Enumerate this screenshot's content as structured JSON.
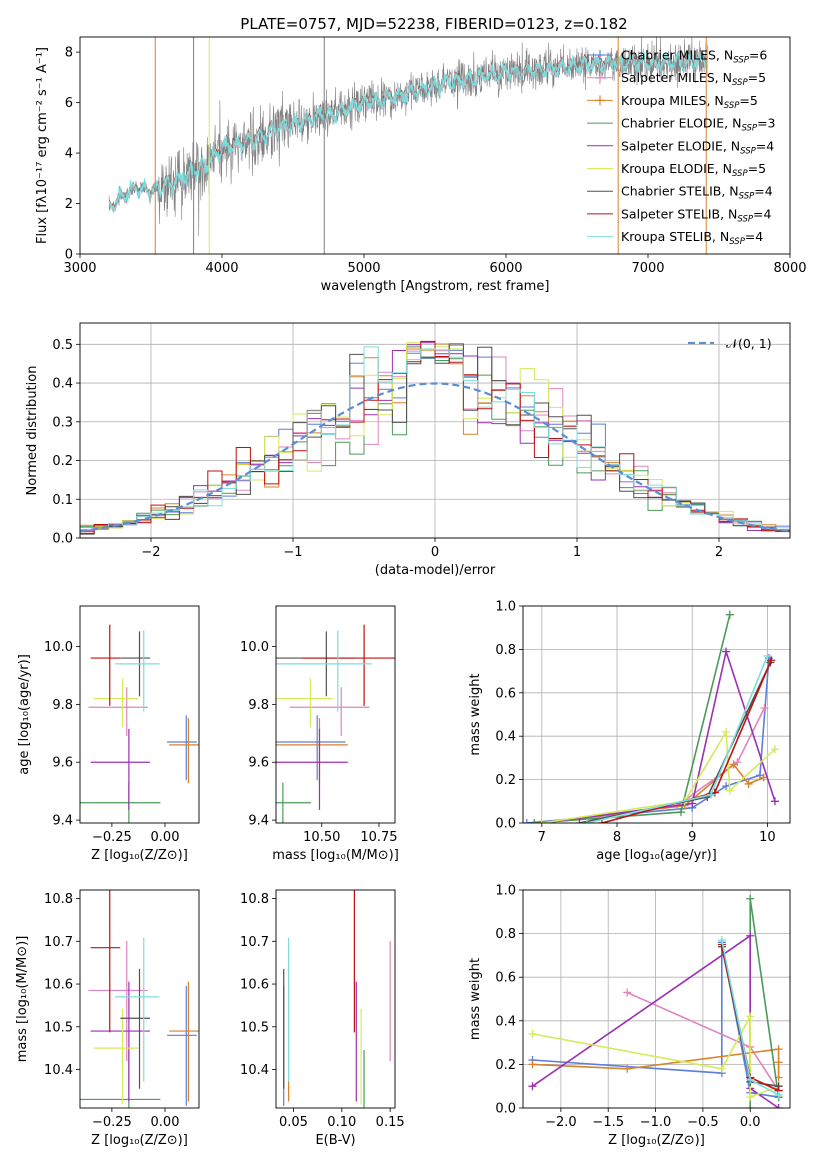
{
  "figure": {
    "title": "PLATE=0757, MJD=52238, FIBERID=0123, z=0.182"
  },
  "chart_data": [
    {
      "id": "spectrum",
      "type": "line",
      "xlabel": "wavelength [Angstrom, rest frame]",
      "ylabel": "Flux [fλ10⁻¹⁷ erg cm⁻² s⁻¹ A⁻¹]",
      "xlim": [
        3000,
        8000
      ],
      "ylim": [
        0,
        8.6
      ],
      "xticks": [
        3000,
        4000,
        5000,
        6000,
        7000,
        8000
      ],
      "yticks": [
        0,
        2,
        4,
        6,
        8
      ],
      "observed_color": "#808080",
      "model_color": "#7fdcdc",
      "continuum": [
        [
          3200,
          1.8
        ],
        [
          3300,
          2.3
        ],
        [
          3400,
          2.6
        ],
        [
          3500,
          2.5
        ],
        [
          3600,
          2.7
        ],
        [
          3700,
          3.0
        ],
        [
          3800,
          3.3
        ],
        [
          3900,
          3.6
        ],
        [
          4000,
          4.2
        ],
        [
          4100,
          4.3
        ],
        [
          4200,
          4.5
        ],
        [
          4300,
          4.7
        ],
        [
          4400,
          5.0
        ],
        [
          4500,
          5.2
        ],
        [
          4600,
          5.3
        ],
        [
          4700,
          5.5
        ],
        [
          4800,
          5.6
        ],
        [
          4900,
          5.8
        ],
        [
          5000,
          6.0
        ],
        [
          5200,
          6.2
        ],
        [
          5400,
          6.5
        ],
        [
          5600,
          6.8
        ],
        [
          5800,
          7.0
        ],
        [
          6000,
          7.2
        ],
        [
          6200,
          7.3
        ],
        [
          6400,
          7.4
        ],
        [
          6600,
          7.5
        ],
        [
          6800,
          7.6
        ],
        [
          7000,
          7.6
        ],
        [
          7200,
          7.6
        ],
        [
          7420,
          7.7
        ]
      ],
      "legend_position": "upper-right",
      "legend": [
        {
          "label": "Chabrier MILES, N",
          "sub": "SSP",
          "suffix": "=6",
          "color": "#5b7fdc",
          "marker": "plus"
        },
        {
          "label": "Salpeter MILES, N",
          "sub": "SSP",
          "suffix": "=5",
          "color": "#e085c0",
          "marker": "plus"
        },
        {
          "label": "Kroupa MILES, N",
          "sub": "SSP",
          "suffix": "=5",
          "color": "#d9822b",
          "marker": "plus"
        },
        {
          "label": "Chabrier ELODIE, N",
          "sub": "SSP",
          "suffix": "=3",
          "color": "#4c9a5a",
          "marker": "line"
        },
        {
          "label": "Salpeter ELODIE, N",
          "sub": "SSP",
          "suffix": "=4",
          "color": "#9b30b5",
          "marker": "line"
        },
        {
          "label": "Kroupa ELODIE, N",
          "sub": "SSP",
          "suffix": "=5",
          "color": "#d6ea5a",
          "marker": "line"
        },
        {
          "label": "Chabrier STELIB, N",
          "sub": "SSP",
          "suffix": "=4",
          "color": "#505050",
          "marker": "line"
        },
        {
          "label": "Salpeter STELIB, N",
          "sub": "SSP",
          "suffix": "=4",
          "color": "#c01010",
          "marker": "line"
        },
        {
          "label": "Kroupa STELIB, N",
          "sub": "SSP",
          "suffix": "=4",
          "color": "#7fdcdc",
          "marker": "line"
        }
      ]
    },
    {
      "id": "residuals",
      "type": "line",
      "xlabel": "(data-model)/error",
      "ylabel": "Normed distribution",
      "xlim": [
        -2.5,
        2.5
      ],
      "ylim": [
        0,
        0.555
      ],
      "xticks": [
        -2,
        -1,
        0,
        1,
        2
      ],
      "yticks": [
        0.0,
        0.1,
        0.2,
        0.3,
        0.4,
        0.5
      ],
      "bin_width": 0.1,
      "normal_label": "𝒩(0, 1)",
      "normal_color": "#5b8ed6"
    },
    {
      "id": "z-age",
      "type": "scatter",
      "xlabel": "Z [log₁₀(Z/Z⊙)]",
      "ylabel": "age  [log₁₀(age/yr)]",
      "xlim": [
        -0.4,
        0.16
      ],
      "ylim": [
        9.39,
        10.14
      ],
      "xticks": [
        -0.25,
        0.0
      ],
      "yticks": [
        9.4,
        9.6,
        9.8,
        10.0
      ]
    },
    {
      "id": "mass-age",
      "type": "scatter",
      "xlabel": "mass [log₁₀(M/M⊙)]",
      "ylabel": "",
      "xlim": [
        10.3,
        10.82
      ],
      "ylim": [
        9.39,
        10.14
      ],
      "xticks": [
        10.5,
        10.75
      ],
      "yticks": [
        9.4,
        9.6,
        9.8,
        10.0
      ]
    },
    {
      "id": "age-weight",
      "type": "line",
      "xlabel": "age  [log₁₀(age/yr)]",
      "ylabel": "mass weight",
      "xlim": [
        6.75,
        10.3
      ],
      "ylim": [
        0,
        1.0
      ],
      "xticks": [
        7,
        8,
        9,
        10
      ],
      "yticks": [
        0.0,
        0.2,
        0.4,
        0.6,
        0.8,
        1.0
      ]
    },
    {
      "id": "z-mass",
      "type": "scatter",
      "xlabel": "Z [log₁₀(Z/Z⊙)]",
      "ylabel": "mass [log₁₀(M/M⊙)]",
      "xlim": [
        -0.4,
        0.16
      ],
      "ylim": [
        10.31,
        10.82
      ],
      "xticks": [
        -0.25,
        0.0
      ],
      "yticks": [
        10.4,
        10.5,
        10.6,
        10.7,
        10.8
      ]
    },
    {
      "id": "ebv-mass",
      "type": "scatter",
      "xlabel": "E(B-V)",
      "ylabel": "",
      "xlim": [
        0.032,
        0.155
      ],
      "ylim": [
        10.31,
        10.82
      ],
      "xticks": [
        0.05,
        0.1,
        0.15
      ],
      "yticks": [
        10.4,
        10.5,
        10.6,
        10.7,
        10.8
      ]
    },
    {
      "id": "z-weight",
      "type": "line",
      "xlabel": "Z [log₁₀(Z/Z⊙)]",
      "ylabel": "mass weight",
      "xlim": [
        -2.4,
        0.42
      ],
      "ylim": [
        0,
        1.0
      ],
      "xticks": [
        -2.0,
        -1.5,
        -1.0,
        -0.5,
        0.0
      ],
      "yticks": [
        0.0,
        0.2,
        0.4,
        0.6,
        0.8,
        1.0
      ]
    }
  ],
  "models": [
    {
      "name": "Chabrier MILES",
      "color": "#5b7fdc",
      "Z": [
        0.1,
        0.02
      ],
      "age": [
        9.67,
        0.04
      ],
      "mass": [
        10.48,
        0.05
      ],
      "ebv": 0.04,
      "weights": [
        [
          6.8,
          0.0
        ],
        [
          9.0,
          0.07
        ],
        [
          9.45,
          0.17
        ],
        [
          9.9,
          0.22
        ],
        [
          10.02,
          0.76
        ]
      ],
      "zw": [
        [
          -2.3,
          0.22
        ],
        [
          -0.3,
          0.16
        ],
        [
          -0.3,
          0.76
        ],
        [
          0.0,
          0.07
        ],
        [
          0.3,
          0.05
        ]
      ]
    },
    {
      "name": "Salpeter MILES",
      "color": "#e085c0",
      "Z": [
        -0.18,
        0.04
      ],
      "age": [
        9.79,
        0.03
      ],
      "mass": [
        10.585,
        0.05
      ],
      "ebv": 0.15,
      "weights": [
        [
          8.8,
          0.08
        ],
        [
          9.6,
          0.28
        ],
        [
          9.96,
          0.53
        ]
      ],
      "zw": [
        [
          -1.3,
          0.53
        ],
        [
          0.0,
          0.28
        ],
        [
          0.3,
          0.08
        ]
      ]
    },
    {
      "name": "Kroupa MILES",
      "color": "#d9822b",
      "Z": [
        0.11,
        0.02
      ],
      "age": [
        9.66,
        0.04
      ],
      "mass": [
        10.49,
        0.05
      ],
      "ebv": 0.045,
      "weights": [
        [
          7.0,
          0.0
        ],
        [
          8.9,
          0.08
        ],
        [
          9.55,
          0.27
        ],
        [
          9.75,
          0.18
        ],
        [
          9.95,
          0.21
        ]
      ],
      "zw": [
        [
          -2.3,
          0.2
        ],
        [
          -1.3,
          0.18
        ],
        [
          0.3,
          0.27
        ],
        [
          0.3,
          0.14
        ],
        [
          0.3,
          0.21
        ]
      ]
    },
    {
      "name": "Chabrier ELODIE",
      "color": "#4c9a5a",
      "Z": [
        -0.17,
        0.06
      ],
      "age": [
        9.46,
        0.03
      ],
      "mass": [
        10.33,
        0.05
      ],
      "ebv": 0.123,
      "weights": [
        [
          6.9,
          0.0
        ],
        [
          8.85,
          0.05
        ],
        [
          9.5,
          0.96
        ]
      ],
      "zw": [
        [
          0.0,
          0.0
        ],
        [
          0.0,
          0.96
        ],
        [
          0.3,
          0.05
        ]
      ]
    },
    {
      "name": "Salpeter ELODIE",
      "color": "#9b30b5",
      "Z": [
        -0.17,
        0.04
      ],
      "age": [
        9.6,
        0.05
      ],
      "mass": [
        10.49,
        0.05
      ],
      "ebv": 0.115,
      "weights": [
        [
          7.0,
          0.0
        ],
        [
          9.0,
          0.09
        ],
        [
          9.45,
          0.79
        ],
        [
          10.1,
          0.1
        ]
      ],
      "zw": [
        [
          -2.3,
          0.1
        ],
        [
          0.0,
          0.79
        ],
        [
          0.0,
          0.09
        ],
        [
          0.3,
          0.0
        ]
      ]
    },
    {
      "name": "Kroupa ELODIE",
      "color": "#d6ea5a",
      "Z": [
        -0.2,
        0.03
      ],
      "age": [
        9.82,
        0.03
      ],
      "mass": [
        10.45,
        0.04
      ],
      "ebv": 0.12,
      "weights": [
        [
          7.0,
          0.0
        ],
        [
          8.9,
          0.1
        ],
        [
          9.45,
          0.42
        ],
        [
          9.5,
          0.15
        ],
        [
          10.1,
          0.34
        ]
      ],
      "zw": [
        [
          -2.3,
          0.34
        ],
        [
          -0.3,
          0.18
        ],
        [
          0.0,
          0.42
        ],
        [
          0.0,
          0.05
        ],
        [
          0.3,
          0.1
        ]
      ]
    },
    {
      "name": "Chabrier STELIB",
      "color": "#505050",
      "Z": [
        -0.12,
        0.02
      ],
      "age": [
        9.96,
        0.04
      ],
      "mass": [
        10.52,
        0.05
      ],
      "ebv": 0.04,
      "weights": [
        [
          7.5,
          0.0
        ],
        [
          9.2,
          0.12
        ],
        [
          10.04,
          0.74
        ]
      ],
      "zw": [
        [
          -0.3,
          0.74
        ],
        [
          0.0,
          0.12
        ],
        [
          0.3,
          0.1
        ]
      ]
    },
    {
      "name": "Salpeter STELIB",
      "color": "#c01010",
      "Z": [
        -0.26,
        0.02
      ],
      "age": [
        9.96,
        0.05
      ],
      "mass": [
        10.685,
        0.06
      ],
      "ebv": 0.113,
      "weights": [
        [
          7.8,
          0.0
        ],
        [
          9.3,
          0.14
        ],
        [
          10.05,
          0.75
        ]
      ],
      "zw": [
        [
          -0.3,
          0.75
        ],
        [
          0.0,
          0.14
        ],
        [
          0.3,
          0.08
        ]
      ]
    },
    {
      "name": "Kroupa STELIB",
      "color": "#7fdcdc",
      "Z": [
        -0.1,
        0.03
      ],
      "age": [
        9.94,
        0.05
      ],
      "mass": [
        10.57,
        0.06
      ],
      "ebv": 0.045,
      "weights": [
        [
          7.6,
          0.0
        ],
        [
          9.25,
          0.13
        ],
        [
          10.0,
          0.77
        ]
      ],
      "zw": [
        [
          -0.3,
          0.77
        ],
        [
          0.0,
          0.13
        ],
        [
          0.3,
          0.06
        ]
      ]
    }
  ]
}
